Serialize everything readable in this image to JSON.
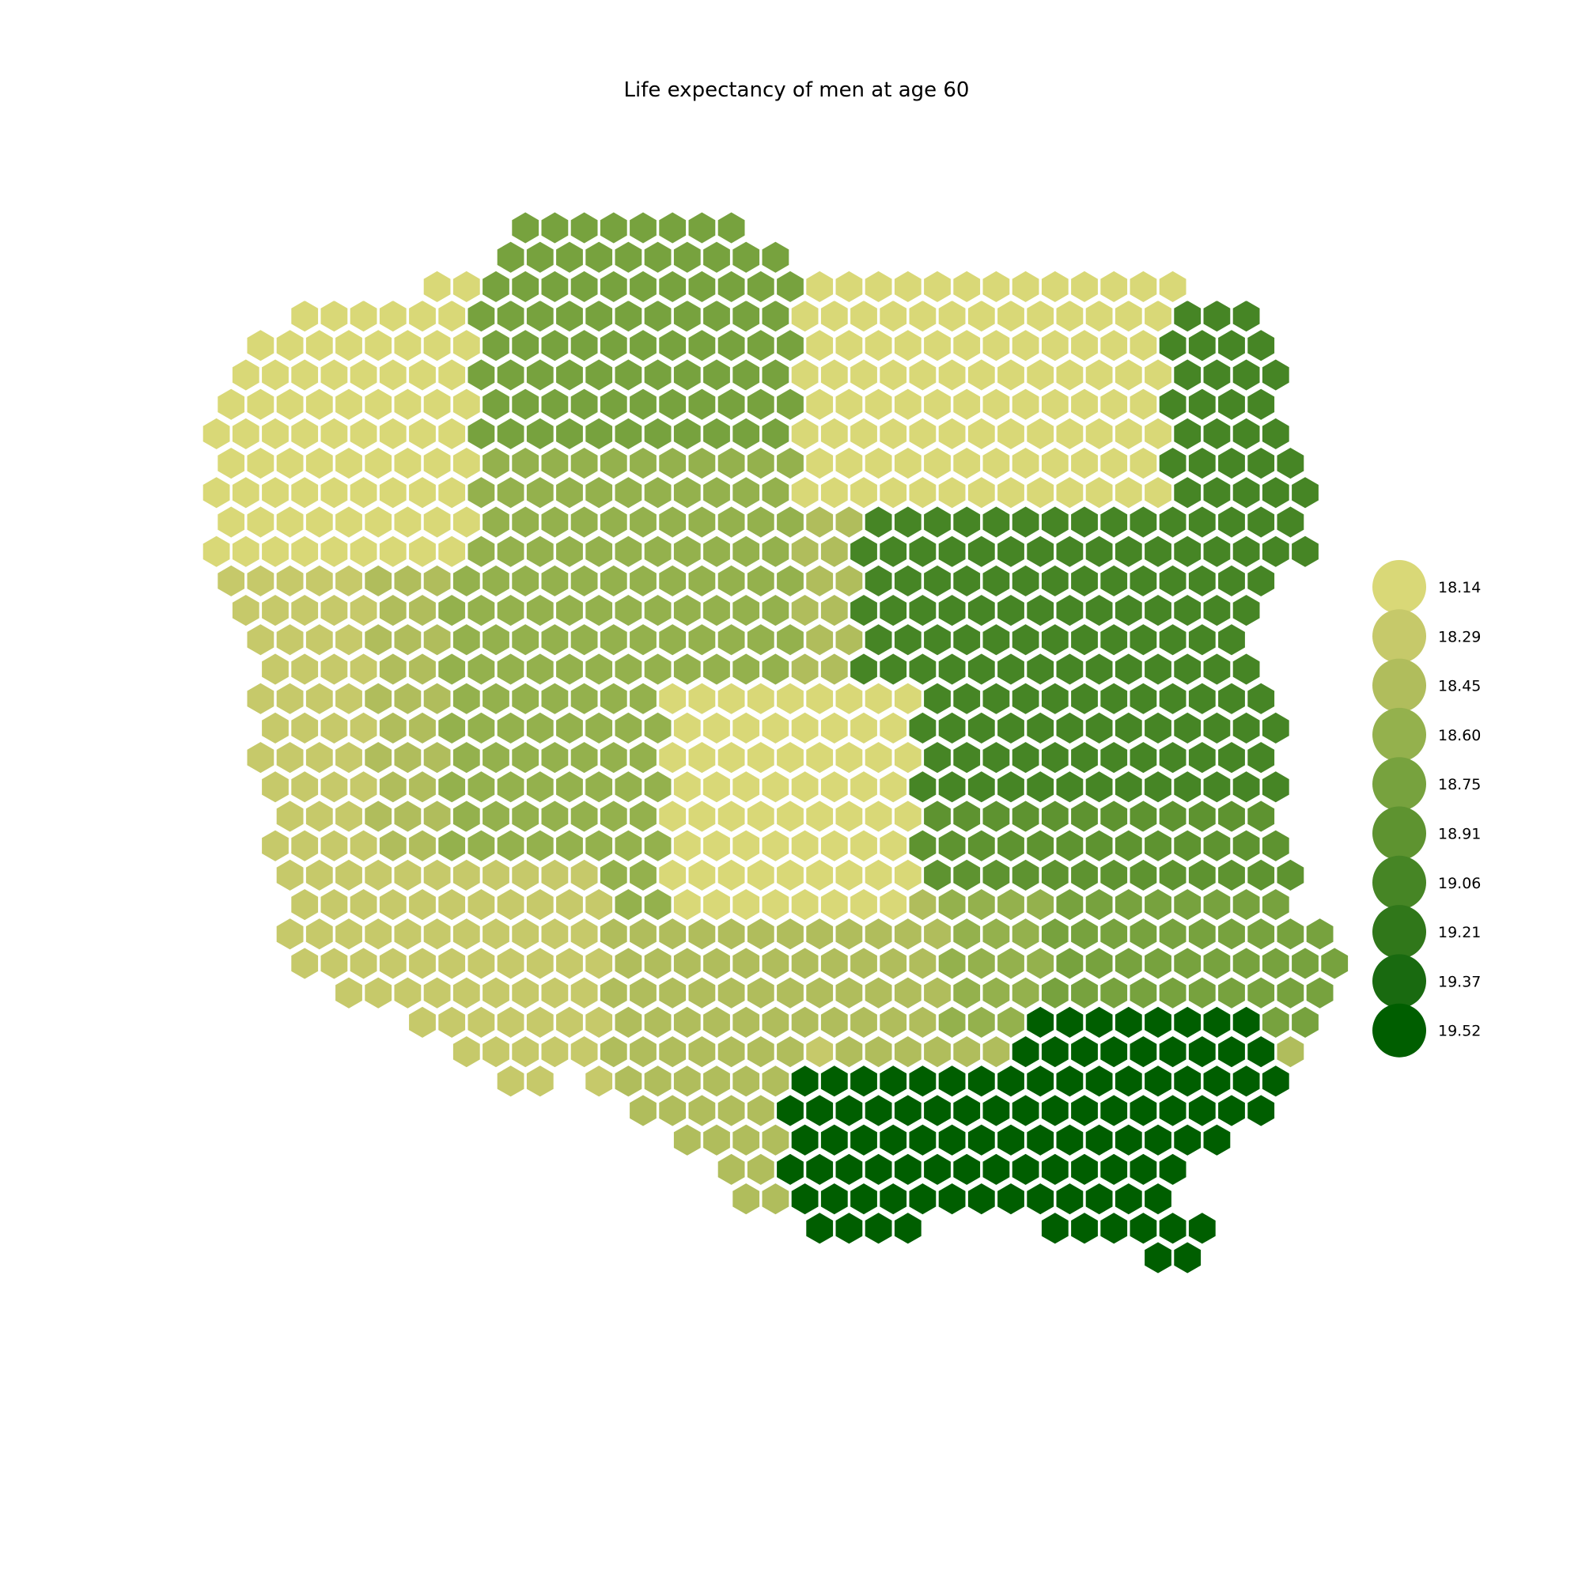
{
  "title": "Life expectancy of men at age 60",
  "legend": {
    "placement": "right",
    "items": [
      {
        "label": "18.14",
        "value": 18.14,
        "color": "#d9d877"
      },
      {
        "label": "18.29",
        "value": 18.29,
        "color": "#c6c96a"
      },
      {
        "label": "18.45",
        "value": 18.45,
        "color": "#b0bd5c"
      },
      {
        "label": "18.60",
        "value": 18.6,
        "color": "#94b14d"
      },
      {
        "label": "18.75",
        "value": 18.75,
        "color": "#77a23e"
      },
      {
        "label": "18.91",
        "value": 18.91,
        "color": "#5e9330"
      },
      {
        "label": "19.06",
        "value": 19.06,
        "color": "#468525"
      },
      {
        "label": "19.21",
        "value": 19.21,
        "color": "#30771a"
      },
      {
        "label": "19.37",
        "value": 19.37,
        "color": "#196a10"
      },
      {
        "label": "19.52",
        "value": 19.52,
        "color": "#005e00"
      }
    ]
  },
  "chart_data": {
    "type": "hexbin",
    "region": "Poland",
    "palette": [
      "#d9d877",
      "#c6c96a",
      "#b0bd5c",
      "#94b14d",
      "#77a23e",
      "#5e9330",
      "#468525",
      "#30771a",
      "#196a10",
      "#005e00"
    ],
    "value_min": 18.14,
    "value_max": 19.52
  }
}
